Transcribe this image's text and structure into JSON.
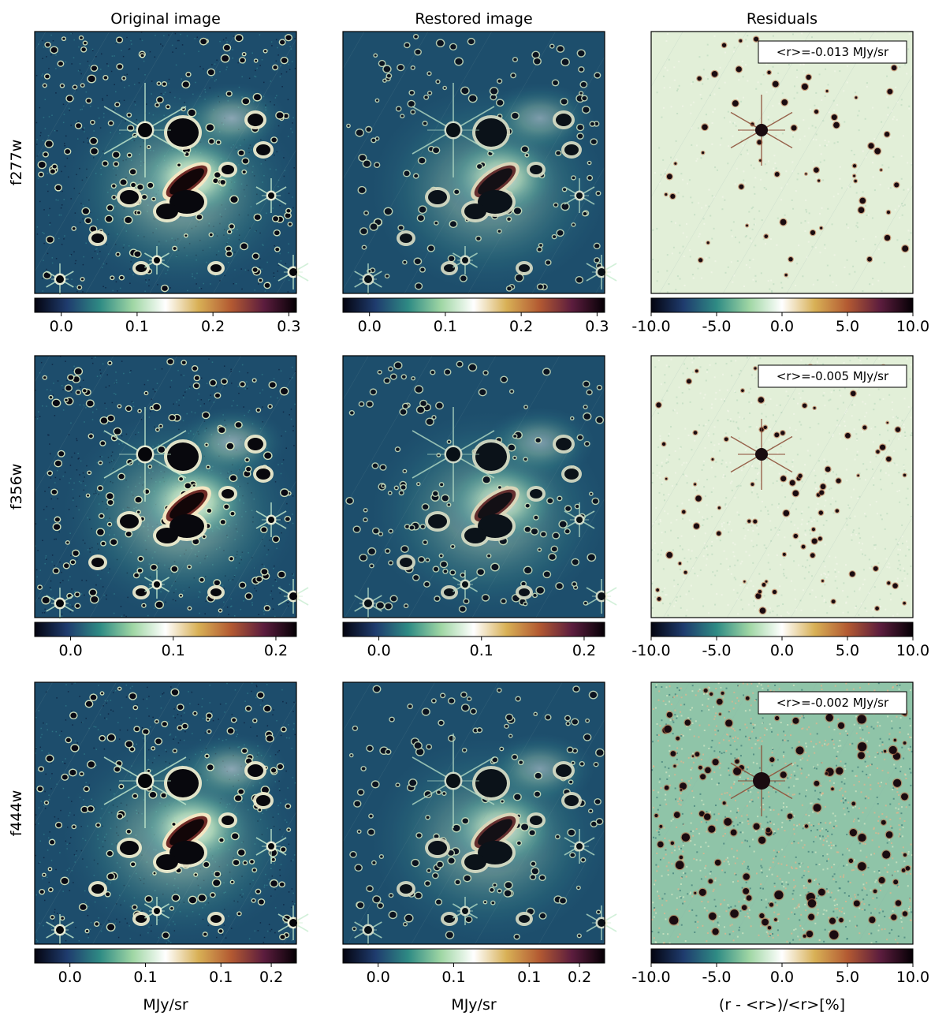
{
  "figure": {
    "column_titles": [
      "Original image",
      "Restored image",
      "Residuals"
    ],
    "row_labels": [
      "f277w",
      "f356w",
      "f444w"
    ],
    "units_label": "MJy/sr",
    "residual_units_label": "(r - <r>)/<r>[%]"
  },
  "chart_data": [
    {
      "type": "heatmap",
      "panel": "f277w Original image",
      "title": "Original image",
      "ylabel": "f277w",
      "colorbar": {
        "range": [
          -0.035,
          0.31
        ],
        "ticks": [
          0.0,
          0.1,
          0.2,
          0.3
        ],
        "tick_labels": [
          "0.0",
          "0.1",
          "0.2",
          "0.3"
        ],
        "label": "",
        "colormap": [
          "#040410",
          "#1f3c6e",
          "#2f8b84",
          "#9fd6a4",
          "#ffffff",
          "#d8b056",
          "#b35a32",
          "#5c1d3e",
          "#050005"
        ]
      }
    },
    {
      "type": "heatmap",
      "panel": "f277w Restored image",
      "title": "Restored image",
      "colorbar": {
        "range": [
          -0.035,
          0.31
        ],
        "ticks": [
          0.0,
          0.1,
          0.2,
          0.3
        ],
        "tick_labels": [
          "0.0",
          "0.1",
          "0.2",
          "0.3"
        ],
        "label": "",
        "colormap": [
          "#040410",
          "#1f3c6e",
          "#2f8b84",
          "#9fd6a4",
          "#ffffff",
          "#d8b056",
          "#b35a32",
          "#5c1d3e",
          "#050005"
        ]
      }
    },
    {
      "type": "heatmap",
      "panel": "f277w Residuals",
      "title": "Residuals",
      "annotation": "<r>=-0.013 MJy/sr",
      "mean_residual": -0.013,
      "colorbar": {
        "range": [
          -10,
          10
        ],
        "ticks": [
          -10,
          -5,
          0,
          5,
          10
        ],
        "tick_labels": [
          "-10.0",
          "-5.0",
          "0.0",
          "5.0",
          "10.0"
        ],
        "label": "",
        "colormap": [
          "#040410",
          "#1f3c6e",
          "#2f8b84",
          "#9fd6a4",
          "#ffffff",
          "#d8b056",
          "#b35a32",
          "#5c1d3e",
          "#050005"
        ]
      }
    },
    {
      "type": "heatmap",
      "panel": "f356w Original image",
      "ylabel": "f356w",
      "colorbar": {
        "range": [
          -0.035,
          0.22
        ],
        "ticks": [
          0.0,
          0.1,
          0.2
        ],
        "tick_labels": [
          "0.0",
          "0.1",
          "0.2"
        ],
        "label": "",
        "colormap": [
          "#040410",
          "#1f3c6e",
          "#2f8b84",
          "#9fd6a4",
          "#ffffff",
          "#d8b056",
          "#b35a32",
          "#5c1d3e",
          "#050005"
        ]
      }
    },
    {
      "type": "heatmap",
      "panel": "f356w Restored image",
      "colorbar": {
        "range": [
          -0.035,
          0.22
        ],
        "ticks": [
          0.0,
          0.1,
          0.2
        ],
        "tick_labels": [
          "0.0",
          "0.1",
          "0.2"
        ],
        "label": "",
        "colormap": [
          "#040410",
          "#1f3c6e",
          "#2f8b84",
          "#9fd6a4",
          "#ffffff",
          "#d8b056",
          "#b35a32",
          "#5c1d3e",
          "#050005"
        ]
      }
    },
    {
      "type": "heatmap",
      "panel": "f356w Residuals",
      "annotation": "<r>=-0.005 MJy/sr",
      "mean_residual": -0.005,
      "colorbar": {
        "range": [
          -10,
          10
        ],
        "ticks": [
          -10,
          -5,
          0,
          5,
          10
        ],
        "tick_labels": [
          "-10.0",
          "-5.0",
          "0.0",
          "5.0",
          "10.0"
        ],
        "label": "",
        "colormap": [
          "#040410",
          "#1f3c6e",
          "#2f8b84",
          "#9fd6a4",
          "#ffffff",
          "#d8b056",
          "#b35a32",
          "#5c1d3e",
          "#050005"
        ]
      }
    },
    {
      "type": "heatmap",
      "panel": "f444w Original image",
      "ylabel": "f444w",
      "colorbar": {
        "range": [
          -0.035,
          0.225
        ],
        "ticks": [
          0.0,
          0.075,
          0.15,
          0.2
        ],
        "tick_labels": [
          "0.0",
          "0.1",
          "0.1",
          "0.2"
        ],
        "label": "MJy/sr",
        "colormap": [
          "#040410",
          "#1f3c6e",
          "#2f8b84",
          "#9fd6a4",
          "#ffffff",
          "#d8b056",
          "#b35a32",
          "#5c1d3e",
          "#050005"
        ]
      }
    },
    {
      "type": "heatmap",
      "panel": "f444w Restored image",
      "colorbar": {
        "range": [
          -0.035,
          0.225
        ],
        "ticks": [
          0.0,
          0.075,
          0.15,
          0.2
        ],
        "tick_labels": [
          "0.0",
          "0.1",
          "0.1",
          "0.2"
        ],
        "label": "MJy/sr",
        "colormap": [
          "#040410",
          "#1f3c6e",
          "#2f8b84",
          "#9fd6a4",
          "#ffffff",
          "#d8b056",
          "#b35a32",
          "#5c1d3e",
          "#050005"
        ]
      }
    },
    {
      "type": "heatmap",
      "panel": "f444w Residuals",
      "annotation": "<r>=-0.002 MJy/sr",
      "mean_residual": -0.002,
      "colorbar": {
        "range": [
          -10,
          10
        ],
        "ticks": [
          -10,
          -5,
          0,
          5,
          10
        ],
        "tick_labels": [
          "-10.0",
          "-5.0",
          "0.0",
          "5.0",
          "10.0"
        ],
        "label": "(r - <r>)/<r>[%]",
        "colormap": [
          "#040410",
          "#1f3c6e",
          "#2f8b84",
          "#9fd6a4",
          "#ffffff",
          "#d8b056",
          "#b35a32",
          "#5c1d3e",
          "#050005"
        ]
      }
    }
  ]
}
